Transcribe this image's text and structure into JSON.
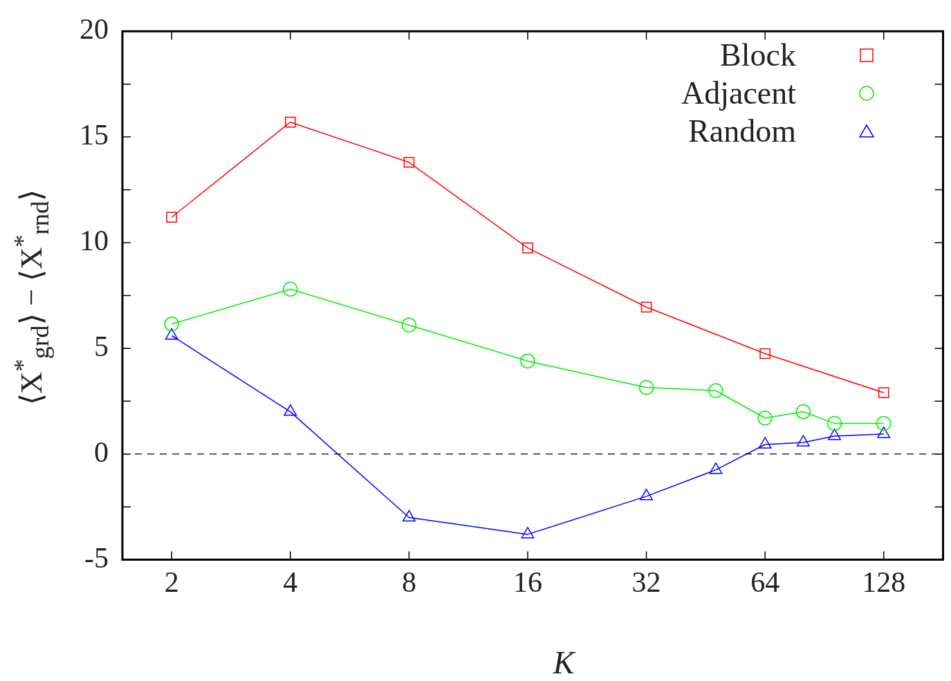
{
  "chart_data": {
    "type": "line",
    "xlabel": "K",
    "ylabel": "⟨X$^{*}$$_{grd}$⟩ − ⟨X$^{*}$$_{rnd}$⟩",
    "log": "x",
    "xlim": [
      1.5,
      181
    ],
    "xticks": [
      2,
      4,
      8,
      16,
      32,
      64,
      128
    ],
    "ylim": [
      -5,
      20
    ],
    "yticks": [
      -5,
      {
        "value": -2.5,
        "label": null
      },
      0,
      {
        "value": 2.5,
        "label": null
      },
      5,
      {
        "value": 7.5,
        "label": null
      },
      10,
      {
        "value": 12.5,
        "label": null
      },
      15,
      {
        "value": 17.5,
        "label": null
      },
      20
    ],
    "grid": false,
    "legend": "top right",
    "line_style": "solid",
    "ref_lines": [
      {
        "axis": "y",
        "value": 0,
        "color": "#000000",
        "line_style": "dashed"
      }
    ],
    "series": [
      {
        "name": "Block",
        "color": "#ff0000",
        "marker": "square",
        "x": [
          2,
          4,
          8,
          16,
          32,
          64,
          128
        ],
        "values": [
          11.2,
          15.7,
          13.8,
          9.75,
          6.95,
          4.75,
          2.9
        ]
      },
      {
        "name": "Adjacent",
        "color": "#00ee00",
        "marker": "circle",
        "x": [
          2,
          4,
          8,
          16,
          32,
          48,
          64,
          80,
          96,
          128
        ],
        "values": [
          6.15,
          7.8,
          6.1,
          4.4,
          3.15,
          3.0,
          1.7,
          2.0,
          1.45,
          1.45
        ]
      },
      {
        "name": "Random",
        "color": "#0000ff",
        "marker": "triangle",
        "x": [
          2,
          4,
          8,
          16,
          32,
          48,
          64,
          80,
          96,
          128
        ],
        "values": [
          5.6,
          2.0,
          -3.0,
          -3.8,
          -2.0,
          -0.75,
          0.45,
          0.55,
          0.85,
          0.95
        ]
      }
    ]
  }
}
